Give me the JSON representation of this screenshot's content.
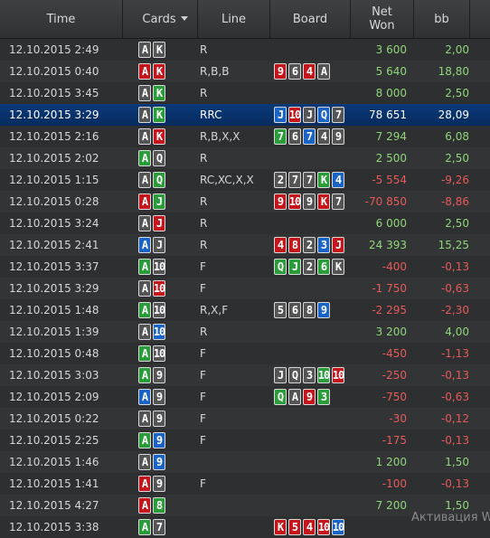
{
  "columns": {
    "time": "Time",
    "cards": "Cards",
    "line": "Line",
    "board": "Board",
    "net_won_1": "Net",
    "net_won_2": "Won",
    "bb": "bb"
  },
  "rows": [
    {
      "time": "12.10.2015 2:49",
      "cards": [
        [
          "A",
          "s"
        ],
        [
          "K",
          "s"
        ]
      ],
      "line": "R",
      "board": [],
      "net": "3 600",
      "bb": "2,00",
      "sign": "pos",
      "selected": false
    },
    {
      "time": "12.10.2015 0:40",
      "cards": [
        [
          "A",
          "h"
        ],
        [
          "K",
          "h"
        ]
      ],
      "line": "R,B,B",
      "board": [
        [
          "9",
          "h"
        ],
        [
          "6",
          "s"
        ],
        [
          "4",
          "h"
        ],
        [
          "A",
          "s"
        ]
      ],
      "net": "5 640",
      "bb": "18,80",
      "sign": "pos",
      "selected": false
    },
    {
      "time": "12.10.2015 3:45",
      "cards": [
        [
          "A",
          "s"
        ],
        [
          "K",
          "c"
        ]
      ],
      "line": "R",
      "board": [],
      "net": "8 000",
      "bb": "2,50",
      "sign": "pos",
      "selected": false
    },
    {
      "time": "12.10.2015 3:29",
      "cards": [
        [
          "A",
          "s"
        ],
        [
          "K",
          "c"
        ]
      ],
      "line": "RRC",
      "board": [
        [
          "J",
          "d"
        ],
        [
          "10",
          "h"
        ],
        [
          "J",
          "s"
        ],
        [
          "Q",
          "d"
        ],
        [
          "7",
          "s"
        ]
      ],
      "net": "78 651",
      "bb": "28,09",
      "sign": "pos",
      "selected": true
    },
    {
      "time": "12.10.2015 2:16",
      "cards": [
        [
          "A",
          "s"
        ],
        [
          "K",
          "h"
        ]
      ],
      "line": "R,B,X,X",
      "board": [
        [
          "7",
          "c"
        ],
        [
          "6",
          "s"
        ],
        [
          "7",
          "d"
        ],
        [
          "4",
          "s"
        ],
        [
          "9",
          "s"
        ]
      ],
      "net": "7 294",
      "bb": "6,08",
      "sign": "pos",
      "selected": false
    },
    {
      "time": "12.10.2015 2:02",
      "cards": [
        [
          "A",
          "c"
        ],
        [
          "Q",
          "s"
        ]
      ],
      "line": "R",
      "board": [],
      "net": "2 500",
      "bb": "2,50",
      "sign": "pos",
      "selected": false
    },
    {
      "time": "12.10.2015 1:15",
      "cards": [
        [
          "A",
          "s"
        ],
        [
          "Q",
          "c"
        ]
      ],
      "line": "RC,XC,X,X",
      "board": [
        [
          "2",
          "s"
        ],
        [
          "7",
          "s"
        ],
        [
          "7",
          "s"
        ],
        [
          "K",
          "c"
        ],
        [
          "4",
          "d"
        ]
      ],
      "net": "-5 554",
      "bb": "-9,26",
      "sign": "neg",
      "selected": false
    },
    {
      "time": "12.10.2015 0:28",
      "cards": [
        [
          "A",
          "h"
        ],
        [
          "J",
          "c"
        ]
      ],
      "line": "R",
      "board": [
        [
          "9",
          "h"
        ],
        [
          "10",
          "h"
        ],
        [
          "9",
          "s"
        ],
        [
          "K",
          "h"
        ],
        [
          "7",
          "s"
        ]
      ],
      "net": "-70 850",
      "bb": "-8,86",
      "sign": "neg",
      "selected": false
    },
    {
      "time": "12.10.2015 3:24",
      "cards": [
        [
          "A",
          "s"
        ],
        [
          "J",
          "h"
        ]
      ],
      "line": "R",
      "board": [],
      "net": "6 000",
      "bb": "2,50",
      "sign": "pos",
      "selected": false
    },
    {
      "time": "12.10.2015 2:41",
      "cards": [
        [
          "A",
          "d"
        ],
        [
          "J",
          "s"
        ]
      ],
      "line": "R",
      "board": [
        [
          "4",
          "h"
        ],
        [
          "8",
          "h"
        ],
        [
          "2",
          "s"
        ],
        [
          "3",
          "d"
        ],
        [
          "J",
          "h"
        ]
      ],
      "net": "24 393",
      "bb": "15,25",
      "sign": "pos",
      "selected": false
    },
    {
      "time": "12.10.2015 3:37",
      "cards": [
        [
          "A",
          "c"
        ],
        [
          "10",
          "s"
        ]
      ],
      "line": "F",
      "board": [
        [
          "Q",
          "c"
        ],
        [
          "J",
          "c"
        ],
        [
          "2",
          "s"
        ],
        [
          "6",
          "c"
        ],
        [
          "K",
          "s"
        ]
      ],
      "net": "-400",
      "bb": "-0,13",
      "sign": "neg",
      "selected": false
    },
    {
      "time": "12.10.2015 3:29",
      "cards": [
        [
          "A",
          "s"
        ],
        [
          "10",
          "h"
        ]
      ],
      "line": "F",
      "board": [],
      "net": "-1 750",
      "bb": "-0,63",
      "sign": "neg",
      "selected": false
    },
    {
      "time": "12.10.2015 1:48",
      "cards": [
        [
          "A",
          "c"
        ],
        [
          "10",
          "s"
        ]
      ],
      "line": "R,X,F",
      "board": [
        [
          "5",
          "s"
        ],
        [
          "6",
          "s"
        ],
        [
          "8",
          "s"
        ],
        [
          "9",
          "d"
        ]
      ],
      "net": "-2 295",
      "bb": "-2,30",
      "sign": "neg",
      "selected": false
    },
    {
      "time": "12.10.2015 1:39",
      "cards": [
        [
          "A",
          "s"
        ],
        [
          "10",
          "d"
        ]
      ],
      "line": "R",
      "board": [],
      "net": "3 200",
      "bb": "4,00",
      "sign": "pos",
      "selected": false
    },
    {
      "time": "12.10.2015 0:48",
      "cards": [
        [
          "A",
          "c"
        ],
        [
          "10",
          "s"
        ]
      ],
      "line": "F",
      "board": [],
      "net": "-450",
      "bb": "-1,13",
      "sign": "neg",
      "selected": false
    },
    {
      "time": "12.10.2015 3:03",
      "cards": [
        [
          "A",
          "c"
        ],
        [
          "9",
          "s"
        ]
      ],
      "line": "F",
      "board": [
        [
          "J",
          "s"
        ],
        [
          "Q",
          "s"
        ],
        [
          "3",
          "s"
        ],
        [
          "10",
          "c"
        ],
        [
          "10",
          "h"
        ]
      ],
      "net": "-250",
      "bb": "-0,13",
      "sign": "neg",
      "selected": false
    },
    {
      "time": "12.10.2015 2:09",
      "cards": [
        [
          "A",
          "d"
        ],
        [
          "9",
          "s"
        ]
      ],
      "line": "F",
      "board": [
        [
          "Q",
          "c"
        ],
        [
          "A",
          "s"
        ],
        [
          "9",
          "h"
        ],
        [
          "3",
          "c"
        ]
      ],
      "net": "-750",
      "bb": "-0,63",
      "sign": "neg",
      "selected": false
    },
    {
      "time": "12.10.2015 0:22",
      "cards": [
        [
          "A",
          "s"
        ],
        [
          "9",
          "s"
        ]
      ],
      "line": "F",
      "board": [],
      "net": "-30",
      "bb": "-0,12",
      "sign": "neg",
      "selected": false
    },
    {
      "time": "12.10.2015 2:25",
      "cards": [
        [
          "A",
          "c"
        ],
        [
          "9",
          "d"
        ]
      ],
      "line": "F",
      "board": [],
      "net": "-175",
      "bb": "-0,13",
      "sign": "neg",
      "selected": false
    },
    {
      "time": "12.10.2015 1:46",
      "cards": [
        [
          "A",
          "s"
        ],
        [
          "9",
          "d"
        ]
      ],
      "line": "",
      "board": [],
      "net": "1 200",
      "bb": "1,50",
      "sign": "pos",
      "selected": false
    },
    {
      "time": "12.10.2015 1:41",
      "cards": [
        [
          "A",
          "h"
        ],
        [
          "9",
          "s"
        ]
      ],
      "line": "F",
      "board": [],
      "net": "-100",
      "bb": "-0,13",
      "sign": "neg",
      "selected": false
    },
    {
      "time": "12.10.2015 4:27",
      "cards": [
        [
          "A",
          "h"
        ],
        [
          "8",
          "c"
        ]
      ],
      "line": "",
      "board": [],
      "net": "7 200",
      "bb": "1,50",
      "sign": "pos",
      "selected": false
    },
    {
      "time": "12.10.2015 3:38",
      "cards": [
        [
          "A",
          "c"
        ],
        [
          "7",
          "s"
        ]
      ],
      "line": "",
      "board": [
        [
          "K",
          "h"
        ],
        [
          "5",
          "h"
        ],
        [
          "4",
          "h"
        ],
        [
          "10",
          "h"
        ],
        [
          "10",
          "d"
        ]
      ],
      "net": "",
      "bb": "",
      "sign": "neg",
      "selected": false
    }
  ],
  "suit_colors": {
    "s": "#555555",
    "h": "#c4161c",
    "d": "#1a64c8",
    "c": "#2a9d3a"
  },
  "watermark": "Активация W"
}
